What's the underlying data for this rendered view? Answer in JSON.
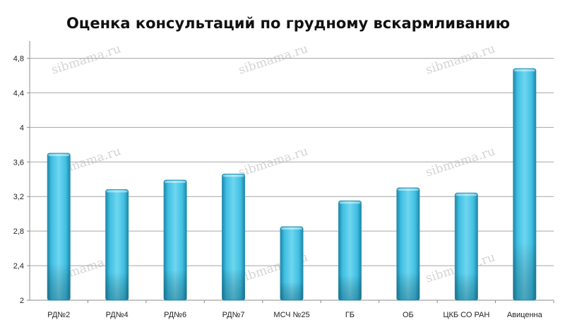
{
  "chart_data": {
    "type": "bar",
    "title": "Оценка консультаций по грудному вскармливанию",
    "xlabel": "",
    "ylabel": "",
    "categories": [
      "РД№2",
      "РД№4",
      "РД№6",
      "РД№7",
      "МСЧ №25",
      "ГБ",
      "ОБ",
      "ЦКБ СО РАН",
      "Авиценна"
    ],
    "values": [
      3.7,
      3.28,
      3.39,
      3.46,
      2.85,
      3.15,
      3.3,
      3.24,
      4.68
    ],
    "ylim": [
      2,
      5
    ],
    "yticks": [
      "2",
      "2,4",
      "2,8",
      "3,2",
      "3,6",
      "4",
      "4,4",
      "4,8"
    ],
    "ytick_values": [
      2,
      2.4,
      2.8,
      3.2,
      3.6,
      4,
      4.4,
      4.8
    ],
    "grid": true,
    "legend": "none",
    "bar_color": "#3bbde0",
    "bar_color_dark": "#2a93b4"
  },
  "watermark_text": "sibmama.ru"
}
